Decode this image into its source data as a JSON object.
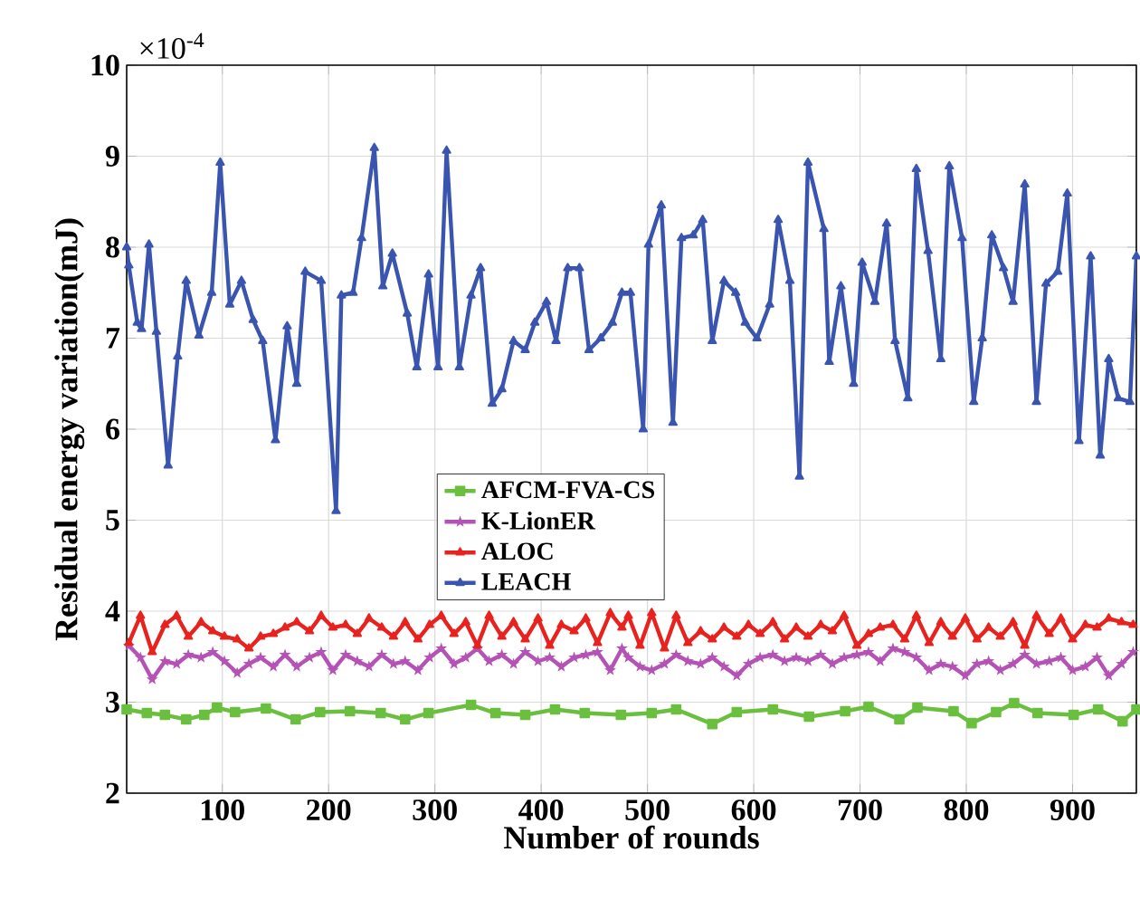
{
  "chart_data": {
    "type": "line",
    "xlabel": "Number of rounds",
    "ylabel": "Residual energy variation(mJ)",
    "annotations": [
      "×10$^{-4}$"
    ],
    "xlim": [
      10,
      960
    ],
    "ylim": [
      2,
      10
    ],
    "xticks": [
      100,
      200,
      300,
      400,
      500,
      600,
      700,
      800,
      900
    ],
    "yticks": [
      2,
      3,
      4,
      5,
      6,
      7,
      8,
      9,
      10
    ],
    "grid": true,
    "legend": "bottom",
    "series": [
      {
        "name": "AFCM-FVA-CS",
        "color": "#6abf3f",
        "marker": "square",
        "x": [
          10,
          29,
          46,
          66,
          83,
          95,
          112,
          141,
          169,
          192,
          220,
          249,
          272,
          294,
          334,
          357,
          385,
          413,
          441,
          475,
          504,
          527,
          561,
          584,
          618,
          652,
          686,
          708,
          737,
          754,
          788,
          805,
          828,
          845,
          867,
          901,
          924,
          947,
          960
        ],
        "values": [
          2.92,
          2.88,
          2.86,
          2.81,
          2.86,
          2.94,
          2.89,
          2.93,
          2.81,
          2.89,
          2.9,
          2.88,
          2.81,
          2.88,
          2.97,
          2.88,
          2.86,
          2.92,
          2.88,
          2.86,
          2.88,
          2.92,
          2.76,
          2.89,
          2.92,
          2.84,
          2.9,
          2.95,
          2.81,
          2.94,
          2.9,
          2.77,
          2.89,
          2.99,
          2.88,
          2.86,
          2.92,
          2.79,
          2.92
        ]
      },
      {
        "name": "K-LionER",
        "color": "#b552b5",
        "marker": "star",
        "x": [
          12,
          23,
          34,
          46,
          57,
          68,
          80,
          91,
          102,
          114,
          125,
          136,
          148,
          159,
          170,
          182,
          193,
          204,
          216,
          227,
          238,
          250,
          261,
          272,
          284,
          295,
          306,
          318,
          329,
          340,
          351,
          363,
          374,
          385,
          397,
          408,
          419,
          431,
          442,
          453,
          465,
          476,
          482,
          493,
          504,
          516,
          527,
          538,
          550,
          561,
          572,
          584,
          595,
          606,
          618,
          629,
          640,
          651,
          663,
          674,
          685,
          697,
          708,
          719,
          731,
          742,
          753,
          765,
          776,
          787,
          799,
          810,
          821,
          832,
          844,
          855,
          866,
          878,
          889,
          900,
          912,
          923,
          934,
          946,
          957
        ],
        "values": [
          3.62,
          3.49,
          3.25,
          3.45,
          3.42,
          3.52,
          3.49,
          3.55,
          3.45,
          3.32,
          3.42,
          3.49,
          3.39,
          3.52,
          3.39,
          3.49,
          3.55,
          3.35,
          3.52,
          3.45,
          3.39,
          3.52,
          3.42,
          3.45,
          3.35,
          3.49,
          3.59,
          3.42,
          3.49,
          3.59,
          3.45,
          3.52,
          3.42,
          3.55,
          3.45,
          3.49,
          3.39,
          3.49,
          3.52,
          3.55,
          3.35,
          3.59,
          3.49,
          3.39,
          3.35,
          3.42,
          3.52,
          3.45,
          3.42,
          3.49,
          3.39,
          3.29,
          3.42,
          3.49,
          3.52,
          3.45,
          3.49,
          3.45,
          3.52,
          3.42,
          3.49,
          3.52,
          3.55,
          3.45,
          3.59,
          3.55,
          3.49,
          3.35,
          3.42,
          3.39,
          3.29,
          3.42,
          3.45,
          3.35,
          3.42,
          3.52,
          3.42,
          3.45,
          3.49,
          3.35,
          3.39,
          3.49,
          3.29,
          3.42,
          3.55
        ]
      },
      {
        "name": "ALOC",
        "color": "#e8221e",
        "marker": "triangle",
        "x": [
          12,
          23,
          34,
          46,
          57,
          68,
          80,
          91,
          102,
          114,
          125,
          136,
          148,
          159,
          170,
          182,
          193,
          204,
          216,
          227,
          238,
          250,
          261,
          272,
          284,
          295,
          306,
          318,
          329,
          340,
          351,
          363,
          374,
          385,
          397,
          408,
          419,
          431,
          442,
          453,
          465,
          476,
          482,
          493,
          504,
          516,
          527,
          538,
          550,
          561,
          572,
          584,
          595,
          606,
          618,
          629,
          640,
          651,
          663,
          674,
          685,
          697,
          708,
          719,
          731,
          742,
          753,
          765,
          776,
          787,
          799,
          810,
          821,
          832,
          844,
          855,
          866,
          878,
          889,
          900,
          912,
          923,
          934,
          946,
          957
        ],
        "values": [
          3.65,
          3.95,
          3.55,
          3.85,
          3.95,
          3.72,
          3.88,
          3.78,
          3.72,
          3.69,
          3.59,
          3.72,
          3.75,
          3.82,
          3.88,
          3.78,
          3.95,
          3.82,
          3.85,
          3.75,
          3.92,
          3.82,
          3.72,
          3.88,
          3.69,
          3.85,
          3.95,
          3.75,
          3.88,
          3.62,
          3.95,
          3.72,
          3.88,
          3.69,
          3.92,
          3.62,
          3.85,
          3.78,
          3.92,
          3.65,
          3.98,
          3.82,
          3.95,
          3.62,
          3.98,
          3.59,
          3.95,
          3.65,
          3.78,
          3.69,
          3.82,
          3.72,
          3.85,
          3.75,
          3.88,
          3.69,
          3.82,
          3.72,
          3.85,
          3.78,
          3.95,
          3.62,
          3.75,
          3.82,
          3.85,
          3.69,
          3.95,
          3.65,
          3.88,
          3.72,
          3.92,
          3.69,
          3.82,
          3.72,
          3.88,
          3.62,
          3.95,
          3.75,
          3.92,
          3.69,
          3.85,
          3.82,
          3.92,
          3.88,
          3.85
        ]
      },
      {
        "name": "LEACH",
        "color": "#3a55b0",
        "marker": "triangle",
        "x": [
          10,
          12,
          20,
          24,
          31,
          38,
          49,
          58,
          66,
          78,
          90,
          98,
          107,
          118,
          129,
          138,
          150,
          161,
          170,
          178,
          193,
          207,
          212,
          223,
          231,
          243,
          251,
          260,
          274,
          283,
          294,
          303,
          311,
          323,
          334,
          343,
          354,
          363,
          374,
          385,
          394,
          405,
          414,
          425,
          436,
          445,
          456,
          467,
          476,
          484,
          496,
          501,
          513,
          524,
          532,
          543,
          552,
          561,
          572,
          583,
          592,
          603,
          615,
          623,
          634,
          643,
          651,
          666,
          671,
          682,
          694,
          702,
          714,
          725,
          733,
          745,
          753,
          764,
          776,
          784,
          796,
          807,
          815,
          824,
          835,
          844,
          855,
          866,
          875,
          886,
          895,
          906,
          917,
          926,
          934,
          943,
          954,
          960
        ],
        "values": [
          8.0,
          7.8,
          7.17,
          7.1,
          8.03,
          7.07,
          5.6,
          6.8,
          7.63,
          7.03,
          7.5,
          8.93,
          7.37,
          7.63,
          7.2,
          6.97,
          5.88,
          7.13,
          6.5,
          7.73,
          7.63,
          5.1,
          7.47,
          7.5,
          8.1,
          9.09,
          7.57,
          7.93,
          7.27,
          6.68,
          7.7,
          6.68,
          9.06,
          6.68,
          7.47,
          7.77,
          6.28,
          6.44,
          6.97,
          6.87,
          7.17,
          7.4,
          6.97,
          7.77,
          7.77,
          6.87,
          7.0,
          7.17,
          7.5,
          7.5,
          6.0,
          8.03,
          8.46,
          6.07,
          8.1,
          8.13,
          8.3,
          6.97,
          7.63,
          7.5,
          7.17,
          7.0,
          7.37,
          8.3,
          7.63,
          5.48,
          8.93,
          8.2,
          6.74,
          7.57,
          6.5,
          7.83,
          7.4,
          8.26,
          6.97,
          6.34,
          8.86,
          7.96,
          6.77,
          8.89,
          8.1,
          6.3,
          7.0,
          8.13,
          7.77,
          7.4,
          8.69,
          6.3,
          7.6,
          7.73,
          8.59,
          5.87,
          7.9,
          5.71,
          6.77,
          6.34,
          6.3,
          7.9
        ]
      }
    ]
  }
}
